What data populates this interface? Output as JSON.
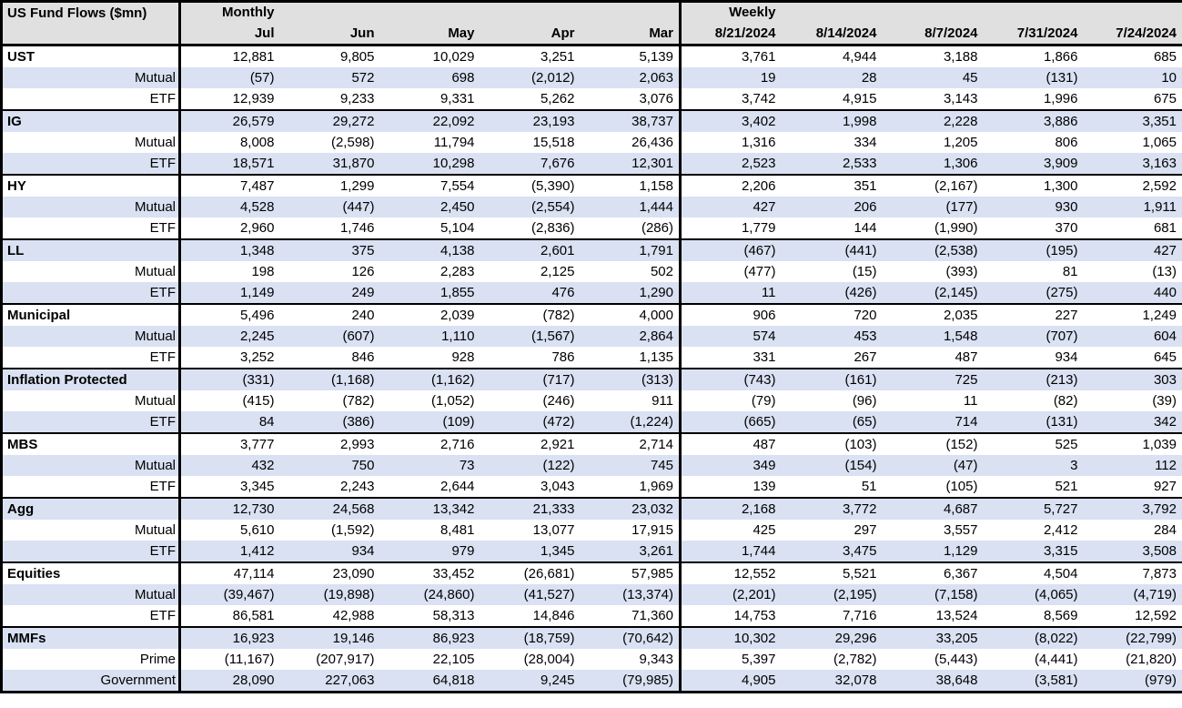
{
  "table": {
    "title": "US Fund Flows ($mn)",
    "sections": [
      {
        "label": "Monthly",
        "columns": [
          "Jul",
          "Jun",
          "May",
          "Apr",
          "Mar"
        ]
      },
      {
        "label": "Weekly",
        "columns": [
          "8/21/2024",
          "8/14/2024",
          "8/7/2024",
          "7/31/2024",
          "7/24/2024"
        ]
      }
    ],
    "groups": [
      {
        "category": "UST",
        "rows": [
          {
            "label": "UST",
            "bold": true,
            "monthly": [
              "12,881",
              "9,805",
              "10,029",
              "3,251",
              "5,139"
            ],
            "weekly": [
              "3,761",
              "4,944",
              "3,188",
              "1,866",
              "685"
            ]
          },
          {
            "label": "Mutual",
            "bold": false,
            "monthly": [
              "(57)",
              "572",
              "698",
              "(2,012)",
              "2,063"
            ],
            "weekly": [
              "19",
              "28",
              "45",
              "(131)",
              "10"
            ]
          },
          {
            "label": "ETF",
            "bold": false,
            "monthly": [
              "12,939",
              "9,233",
              "9,331",
              "5,262",
              "3,076"
            ],
            "weekly": [
              "3,742",
              "4,915",
              "3,143",
              "1,996",
              "675"
            ]
          }
        ]
      },
      {
        "category": "IG",
        "rows": [
          {
            "label": "IG",
            "bold": true,
            "monthly": [
              "26,579",
              "29,272",
              "22,092",
              "23,193",
              "38,737"
            ],
            "weekly": [
              "3,402",
              "1,998",
              "2,228",
              "3,886",
              "3,351"
            ]
          },
          {
            "label": "Mutual",
            "bold": false,
            "monthly": [
              "8,008",
              "(2,598)",
              "11,794",
              "15,518",
              "26,436"
            ],
            "weekly": [
              "1,316",
              "334",
              "1,205",
              "806",
              "1,065"
            ]
          },
          {
            "label": "ETF",
            "bold": false,
            "monthly": [
              "18,571",
              "31,870",
              "10,298",
              "7,676",
              "12,301"
            ],
            "weekly": [
              "2,523",
              "2,533",
              "1,306",
              "3,909",
              "3,163"
            ]
          }
        ]
      },
      {
        "category": "HY",
        "rows": [
          {
            "label": "HY",
            "bold": true,
            "monthly": [
              "7,487",
              "1,299",
              "7,554",
              "(5,390)",
              "1,158"
            ],
            "weekly": [
              "2,206",
              "351",
              "(2,167)",
              "1,300",
              "2,592"
            ]
          },
          {
            "label": "Mutual",
            "bold": false,
            "monthly": [
              "4,528",
              "(447)",
              "2,450",
              "(2,554)",
              "1,444"
            ],
            "weekly": [
              "427",
              "206",
              "(177)",
              "930",
              "1,911"
            ]
          },
          {
            "label": "ETF",
            "bold": false,
            "monthly": [
              "2,960",
              "1,746",
              "5,104",
              "(2,836)",
              "(286)"
            ],
            "weekly": [
              "1,779",
              "144",
              "(1,990)",
              "370",
              "681"
            ]
          }
        ]
      },
      {
        "category": "LL",
        "rows": [
          {
            "label": "LL",
            "bold": true,
            "monthly": [
              "1,348",
              "375",
              "4,138",
              "2,601",
              "1,791"
            ],
            "weekly": [
              "(467)",
              "(441)",
              "(2,538)",
              "(195)",
              "427"
            ]
          },
          {
            "label": "Mutual",
            "bold": false,
            "monthly": [
              "198",
              "126",
              "2,283",
              "2,125",
              "502"
            ],
            "weekly": [
              "(477)",
              "(15)",
              "(393)",
              "81",
              "(13)"
            ]
          },
          {
            "label": "ETF",
            "bold": false,
            "monthly": [
              "1,149",
              "249",
              "1,855",
              "476",
              "1,290"
            ],
            "weekly": [
              "11",
              "(426)",
              "(2,145)",
              "(275)",
              "440"
            ]
          }
        ]
      },
      {
        "category": "Municipal",
        "rows": [
          {
            "label": "Municipal",
            "bold": true,
            "monthly": [
              "5,496",
              "240",
              "2,039",
              "(782)",
              "4,000"
            ],
            "weekly": [
              "906",
              "720",
              "2,035",
              "227",
              "1,249"
            ]
          },
          {
            "label": "Mutual",
            "bold": false,
            "monthly": [
              "2,245",
              "(607)",
              "1,110",
              "(1,567)",
              "2,864"
            ],
            "weekly": [
              "574",
              "453",
              "1,548",
              "(707)",
              "604"
            ]
          },
          {
            "label": "ETF",
            "bold": false,
            "monthly": [
              "3,252",
              "846",
              "928",
              "786",
              "1,135"
            ],
            "weekly": [
              "331",
              "267",
              "487",
              "934",
              "645"
            ]
          }
        ]
      },
      {
        "category": "Inflation Protected",
        "rows": [
          {
            "label": "Inflation Protected",
            "bold": true,
            "monthly": [
              "(331)",
              "(1,168)",
              "(1,162)",
              "(717)",
              "(313)"
            ],
            "weekly": [
              "(743)",
              "(161)",
              "725",
              "(213)",
              "303"
            ]
          },
          {
            "label": "Mutual",
            "bold": false,
            "monthly": [
              "(415)",
              "(782)",
              "(1,052)",
              "(246)",
              "911"
            ],
            "weekly": [
              "(79)",
              "(96)",
              "11",
              "(82)",
              "(39)"
            ]
          },
          {
            "label": "ETF",
            "bold": false,
            "monthly": [
              "84",
              "(386)",
              "(109)",
              "(472)",
              "(1,224)"
            ],
            "weekly": [
              "(665)",
              "(65)",
              "714",
              "(131)",
              "342"
            ]
          }
        ]
      },
      {
        "category": "MBS",
        "rows": [
          {
            "label": "MBS",
            "bold": true,
            "monthly": [
              "3,777",
              "2,993",
              "2,716",
              "2,921",
              "2,714"
            ],
            "weekly": [
              "487",
              "(103)",
              "(152)",
              "525",
              "1,039"
            ]
          },
          {
            "label": "Mutual",
            "bold": false,
            "monthly": [
              "432",
              "750",
              "73",
              "(122)",
              "745"
            ],
            "weekly": [
              "349",
              "(154)",
              "(47)",
              "3",
              "112"
            ]
          },
          {
            "label": "ETF",
            "bold": false,
            "monthly": [
              "3,345",
              "2,243",
              "2,644",
              "3,043",
              "1,969"
            ],
            "weekly": [
              "139",
              "51",
              "(105)",
              "521",
              "927"
            ]
          }
        ]
      },
      {
        "category": "Agg",
        "rows": [
          {
            "label": "Agg",
            "bold": true,
            "monthly": [
              "12,730",
              "24,568",
              "13,342",
              "21,333",
              "23,032"
            ],
            "weekly": [
              "2,168",
              "3,772",
              "4,687",
              "5,727",
              "3,792"
            ]
          },
          {
            "label": "Mutual",
            "bold": false,
            "monthly": [
              "5,610",
              "(1,592)",
              "8,481",
              "13,077",
              "17,915"
            ],
            "weekly": [
              "425",
              "297",
              "3,557",
              "2,412",
              "284"
            ]
          },
          {
            "label": "ETF",
            "bold": false,
            "monthly": [
              "1,412",
              "934",
              "979",
              "1,345",
              "3,261"
            ],
            "weekly": [
              "1,744",
              "3,475",
              "1,129",
              "3,315",
              "3,508"
            ]
          }
        ]
      },
      {
        "category": "Equities",
        "rows": [
          {
            "label": "Equities",
            "bold": true,
            "monthly": [
              "47,114",
              "23,090",
              "33,452",
              "(26,681)",
              "57,985"
            ],
            "weekly": [
              "12,552",
              "5,521",
              "6,367",
              "4,504",
              "7,873"
            ]
          },
          {
            "label": "Mutual",
            "bold": false,
            "monthly": [
              "(39,467)",
              "(19,898)",
              "(24,860)",
              "(41,527)",
              "(13,374)"
            ],
            "weekly": [
              "(2,201)",
              "(2,195)",
              "(7,158)",
              "(4,065)",
              "(4,719)"
            ]
          },
          {
            "label": "ETF",
            "bold": false,
            "monthly": [
              "86,581",
              "42,988",
              "58,313",
              "14,846",
              "71,360"
            ],
            "weekly": [
              "14,753",
              "7,716",
              "13,524",
              "8,569",
              "12,592"
            ]
          }
        ]
      },
      {
        "category": "MMFs",
        "rows": [
          {
            "label": "MMFs",
            "bold": true,
            "monthly": [
              "16,923",
              "19,146",
              "86,923",
              "(18,759)",
              "(70,642)"
            ],
            "weekly": [
              "10,302",
              "29,296",
              "33,205",
              "(8,022)",
              "(22,799)"
            ]
          },
          {
            "label": "Prime",
            "bold": false,
            "monthly": [
              "(11,167)",
              "(207,917)",
              "22,105",
              "(28,004)",
              "9,343"
            ],
            "weekly": [
              "5,397",
              "(2,782)",
              "(5,443)",
              "(4,441)",
              "(21,820)"
            ]
          },
          {
            "label": "Government",
            "bold": false,
            "monthly": [
              "28,090",
              "227,063",
              "64,818",
              "9,245",
              "(79,985)"
            ],
            "weekly": [
              "4,905",
              "32,078",
              "38,648",
              "(3,581)",
              "(979)"
            ]
          }
        ]
      }
    ]
  },
  "colors": {
    "stripe": "#d9e1f2",
    "header_bg": "#e0e0e0",
    "border": "#000000",
    "text": "#000000"
  }
}
